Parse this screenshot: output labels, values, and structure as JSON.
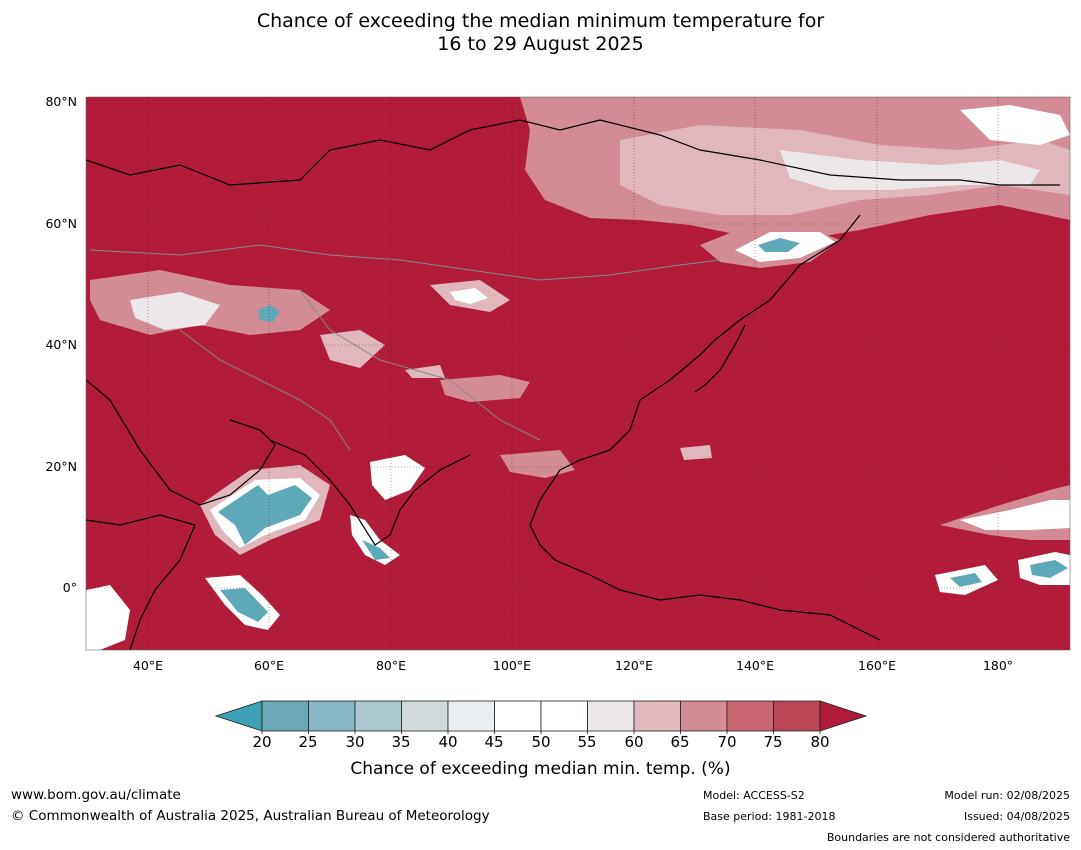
{
  "title": {
    "line1": "Chance of exceeding the median minimum temperature for",
    "line2": "16 to 29 August 2025"
  },
  "map": {
    "background_color": "#b01c3a",
    "lat_labels": [
      "80°N",
      "60°N",
      "40°N",
      "20°N",
      "0°"
    ],
    "lon_labels": [
      "40°E",
      "60°E",
      "80°E",
      "100°E",
      "120°E",
      "140°E",
      "160°E",
      "180°"
    ]
  },
  "colorbar": {
    "label": "Chance of exceeding median min. temp. (%)",
    "ticks": [
      "20",
      "25",
      "30",
      "35",
      "40",
      "45",
      "50",
      "55",
      "60",
      "65",
      "70",
      "75",
      "80"
    ],
    "under_color": "#3f9fb4",
    "over_color": "#ae1b3b",
    "colors": [
      "#6aa8b8",
      "#88b6c3",
      "#abc6cd",
      "#d2d9db",
      "#e9eef0",
      "#ffffff",
      "#ffffff",
      "#ece7e8",
      "#dfb7bd",
      "#d38c96",
      "#c96672",
      "#bb4655"
    ]
  },
  "footer": {
    "website": "www.bom.gov.au/climate",
    "copyright": "© Commonwealth of Australia 2025, Australian Bureau of Meteorology",
    "model": "Model: ACCESS-S2",
    "base_period": "Base period: 1981-2018",
    "model_run": "Model run: 02/08/2025",
    "issued": "Issued: 04/08/2025",
    "boundaries": "Boundaries are not considered authoritative"
  }
}
